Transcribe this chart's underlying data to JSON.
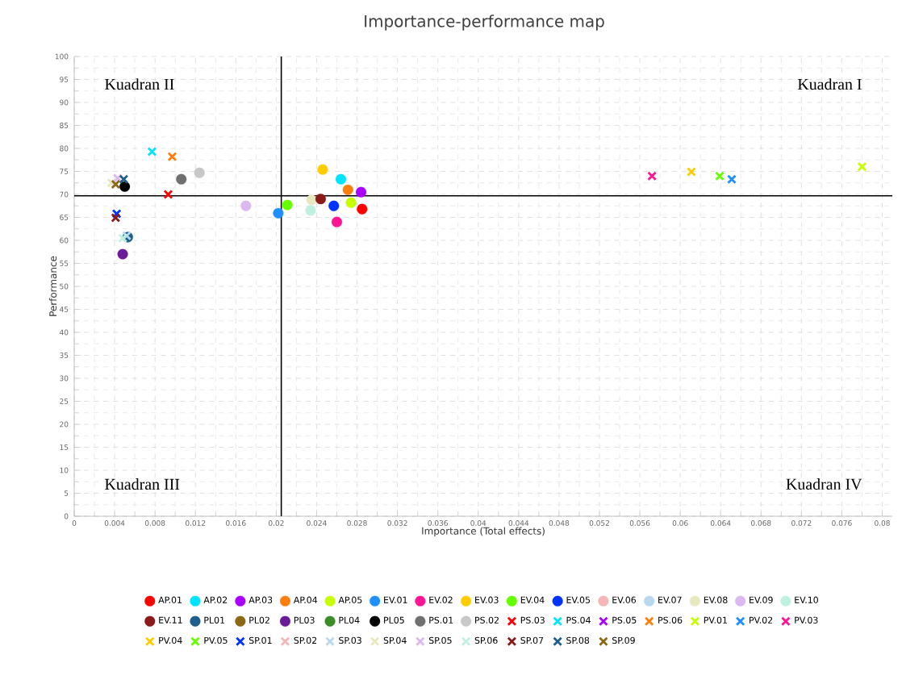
{
  "chart_data": {
    "type": "scatter",
    "title": "Importance-performance map",
    "xlabel": "Importance (Total effects)",
    "ylabel": "Performance",
    "xlim": [
      0,
      0.081
    ],
    "ylim": [
      0,
      100
    ],
    "xticks": [
      0,
      0.004,
      0.008,
      0.012,
      0.016,
      0.02,
      0.024,
      0.028,
      0.032,
      0.036,
      0.04,
      0.044,
      0.048,
      0.052,
      0.056,
      0.06,
      0.064,
      0.068,
      0.072,
      0.076,
      0.08
    ],
    "yticks": [
      0,
      5,
      10,
      15,
      20,
      25,
      30,
      35,
      40,
      45,
      50,
      55,
      60,
      65,
      70,
      75,
      80,
      85,
      90,
      95,
      100
    ],
    "grid": true,
    "legend": "bottom",
    "annotations": [
      "Kuadran II",
      "Kuadran I",
      "Kuadran III",
      "Kuadran IV"
    ],
    "ref_lines": [
      {
        "axis": "x",
        "value": 0.0205,
        "color": "#000000"
      },
      {
        "axis": "y",
        "value": 69.7,
        "color": "#000000"
      }
    ],
    "series": [
      {
        "name": "AP.01",
        "color": "#ff0000",
        "marker": "circle",
        "x": [
          0.0285
        ],
        "values": [
          66.8
        ]
      },
      {
        "name": "AP.02",
        "color": "#00e5ff",
        "marker": "circle",
        "x": [
          0.0264
        ],
        "values": [
          73.3
        ]
      },
      {
        "name": "AP.03",
        "color": "#aa00ff",
        "marker": "circle",
        "x": [
          0.0284
        ],
        "values": [
          70.5
        ]
      },
      {
        "name": "AP.04",
        "color": "#ff7f0e",
        "marker": "circle",
        "x": [
          0.0271
        ],
        "values": [
          71
        ]
      },
      {
        "name": "AP.05",
        "color": "#c6ff00",
        "marker": "circle",
        "x": [
          0.0274
        ],
        "values": [
          68.2
        ]
      },
      {
        "name": "EV.01",
        "color": "#1e90ff",
        "marker": "circle",
        "x": [
          0.0202
        ],
        "values": [
          65.9
        ]
      },
      {
        "name": "EV.02",
        "color": "#ff1493",
        "marker": "circle",
        "x": [
          0.026
        ],
        "values": [
          64
        ]
      },
      {
        "name": "EV.03",
        "color": "#ffcc00",
        "marker": "circle",
        "x": [
          0.0246
        ],
        "values": [
          75.4
        ]
      },
      {
        "name": "EV.04",
        "color": "#66ff00",
        "marker": "circle",
        "x": [
          0.0211
        ],
        "values": [
          67.7
        ]
      },
      {
        "name": "EV.05",
        "color": "#0033ff",
        "marker": "circle",
        "x": [
          0.0257
        ],
        "values": [
          67.5
        ]
      },
      {
        "name": "EV.06",
        "color": "#f4b6b6",
        "marker": "circle",
        "x": [
          null
        ],
        "values": [
          null
        ]
      },
      {
        "name": "EV.07",
        "color": "#b8d8f0",
        "marker": "circle",
        "x": [
          null
        ],
        "values": [
          null
        ]
      },
      {
        "name": "EV.08",
        "color": "#e8e8c0",
        "marker": "circle",
        "x": [
          0.0235
        ],
        "values": [
          68.8
        ]
      },
      {
        "name": "EV.09",
        "color": "#dbb8f0",
        "marker": "circle",
        "x": [
          0.017
        ],
        "values": [
          67.5
        ]
      },
      {
        "name": "EV.10",
        "color": "#bff0e0",
        "marker": "circle",
        "x": [
          0.0234
        ],
        "values": [
          66.5
        ]
      },
      {
        "name": "EV.11",
        "color": "#8b1a1a",
        "marker": "circle",
        "x": [
          0.0244
        ],
        "values": [
          69
        ]
      },
      {
        "name": "PL01",
        "color": "#1f5f8b",
        "marker": "circle",
        "x": [
          0.0053
        ],
        "values": [
          60.7
        ]
      },
      {
        "name": "PL02",
        "color": "#8b6914",
        "marker": "circle",
        "x": [
          null
        ],
        "values": [
          null
        ]
      },
      {
        "name": "PL03",
        "color": "#6a1b9a",
        "marker": "circle",
        "x": [
          0.0048
        ],
        "values": [
          57
        ]
      },
      {
        "name": "PL04",
        "color": "#3c8c28",
        "marker": "circle",
        "x": [
          null
        ],
        "values": [
          null
        ]
      },
      {
        "name": "PL05",
        "color": "#000000",
        "marker": "circle",
        "x": [
          0.005
        ],
        "values": [
          71.7
        ]
      },
      {
        "name": "PS.01",
        "color": "#707070",
        "marker": "circle",
        "x": [
          0.0106
        ],
        "values": [
          73.3
        ]
      },
      {
        "name": "PS.02",
        "color": "#c8c8c8",
        "marker": "circle",
        "x": [
          0.0124
        ],
        "values": [
          74.7
        ]
      },
      {
        "name": "PS.03",
        "color": "#ff0000",
        "marker": "cross",
        "x": [
          0.0093
        ],
        "values": [
          70
        ]
      },
      {
        "name": "PS.04",
        "color": "#00e5ff",
        "marker": "cross",
        "x": [
          0.0077
        ],
        "values": [
          79.3
        ]
      },
      {
        "name": "PS.05",
        "color": "#aa00ff",
        "marker": "cross",
        "x": [
          null
        ],
        "values": [
          null
        ]
      },
      {
        "name": "PS.06",
        "color": "#ff7f0e",
        "marker": "cross",
        "x": [
          0.0097
        ],
        "values": [
          78.2
        ]
      },
      {
        "name": "PV.01",
        "color": "#c6ff00",
        "marker": "cross",
        "x": [
          0.078
        ],
        "values": [
          76
        ]
      },
      {
        "name": "PV.02",
        "color": "#1e90ff",
        "marker": "cross",
        "x": [
          0.0651
        ],
        "values": [
          73.3
        ]
      },
      {
        "name": "PV.03",
        "color": "#ff1493",
        "marker": "cross",
        "x": [
          0.0572
        ],
        "values": [
          74
        ]
      },
      {
        "name": "PV.04",
        "color": "#ffcc00",
        "marker": "cross",
        "x": [
          0.0611
        ],
        "values": [
          74.9
        ]
      },
      {
        "name": "PV.05",
        "color": "#66ff00",
        "marker": "cross",
        "x": [
          0.0639
        ],
        "values": [
          74
        ]
      },
      {
        "name": "SP.01",
        "color": "#0033ff",
        "marker": "cross",
        "x": [
          0.0042
        ],
        "values": [
          65.8
        ]
      },
      {
        "name": "SP.02",
        "color": "#f4b6b6",
        "marker": "cross",
        "x": [
          null
        ],
        "values": [
          null
        ]
      },
      {
        "name": "SP.03",
        "color": "#b8d8f0",
        "marker": "cross",
        "x": [
          0.0052
        ],
        "values": [
          61
        ]
      },
      {
        "name": "SP.04",
        "color": "#e8e8c0",
        "marker": "cross",
        "x": [
          0.0037
        ],
        "values": [
          72.5
        ]
      },
      {
        "name": "SP.05",
        "color": "#dbb8f0",
        "marker": "cross",
        "x": [
          0.0043
        ],
        "values": [
          73.5
        ]
      },
      {
        "name": "SP.06",
        "color": "#bff0e0",
        "marker": "cross",
        "x": [
          0.0048
        ],
        "values": [
          60.5
        ]
      },
      {
        "name": "SP.07",
        "color": "#8b1a1a",
        "marker": "cross",
        "x": [
          0.0041
        ],
        "values": [
          64.9
        ]
      },
      {
        "name": "SP.08",
        "color": "#1f5f8b",
        "marker": "cross",
        "x": [
          0.0049
        ],
        "values": [
          73.3
        ]
      },
      {
        "name": "SP.09",
        "color": "#8b6914",
        "marker": "cross",
        "x": [
          0.0041
        ],
        "values": [
          72.2
        ]
      }
    ]
  }
}
